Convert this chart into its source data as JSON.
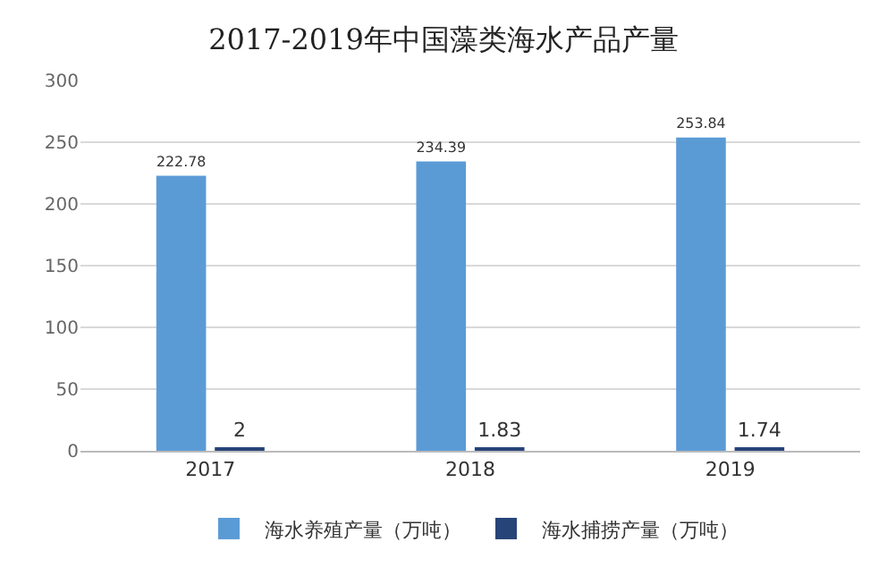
{
  "chart_data": {
    "type": "bar",
    "title": "2017-2019年中国藻类海水产品产量",
    "categories": [
      "2017",
      "2018",
      "2019"
    ],
    "series": [
      {
        "name": "海水养殖产量（万吨）",
        "color": "#5b9bd5",
        "values": [
          222.78,
          234.39,
          253.84
        ]
      },
      {
        "name": "海水捕捞产量（万吨）",
        "color": "#264478",
        "values": [
          2,
          1.83,
          1.74
        ]
      }
    ],
    "ylim": [
      0,
      300
    ],
    "yticks": [
      0,
      50,
      100,
      150,
      200,
      250,
      300
    ],
    "grid": "y",
    "legend": "bottom",
    "data_labels": true
  }
}
